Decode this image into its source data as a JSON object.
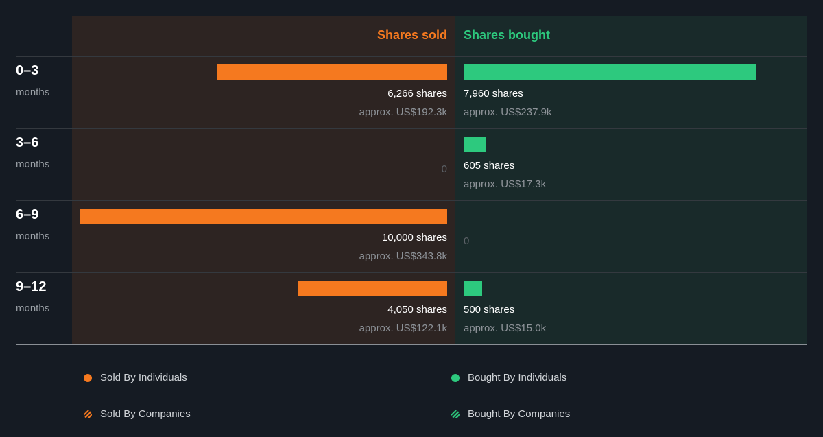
{
  "colors": {
    "sold": "#f5791f",
    "bought": "#2dc97e"
  },
  "headers": {
    "sold": "Shares sold",
    "bought": "Shares bought"
  },
  "chart_data": {
    "type": "bar",
    "title": "",
    "categories": [
      "0–3 months",
      "3–6 months",
      "6–9 months",
      "9–12 months"
    ],
    "series": [
      {
        "name": "Shares sold",
        "values": [
          6266,
          0,
          10000,
          4050
        ]
      },
      {
        "name": "Shares bought",
        "values": [
          7960,
          605,
          0,
          500
        ]
      }
    ],
    "max_shares": 10000
  },
  "rows": [
    {
      "label": "0–3",
      "sublabel": "months",
      "sold": {
        "shares": 6266,
        "text": "6,266 shares",
        "approx": "approx. US$192.3k"
      },
      "bought": {
        "shares": 7960,
        "text": "7,960 shares",
        "approx": "approx. US$237.9k"
      }
    },
    {
      "label": "3–6",
      "sublabel": "months",
      "sold": {
        "shares": 0,
        "text": "0",
        "approx": ""
      },
      "bought": {
        "shares": 605,
        "text": "605 shares",
        "approx": "approx. US$17.3k"
      }
    },
    {
      "label": "6–9",
      "sublabel": "months",
      "sold": {
        "shares": 10000,
        "text": "10,000 shares",
        "approx": "approx. US$343.8k"
      },
      "bought": {
        "shares": 0,
        "text": "0",
        "approx": ""
      }
    },
    {
      "label": "9–12",
      "sublabel": "months",
      "sold": {
        "shares": 4050,
        "text": "4,050 shares",
        "approx": "approx. US$122.1k"
      },
      "bought": {
        "shares": 500,
        "text": "500 shares",
        "approx": "approx. US$15.0k"
      }
    }
  ],
  "legend": {
    "sold_individuals": "Sold By Individuals",
    "bought_individuals": "Bought By Individuals",
    "sold_companies": "Sold By Companies",
    "bought_companies": "Bought By Companies"
  }
}
